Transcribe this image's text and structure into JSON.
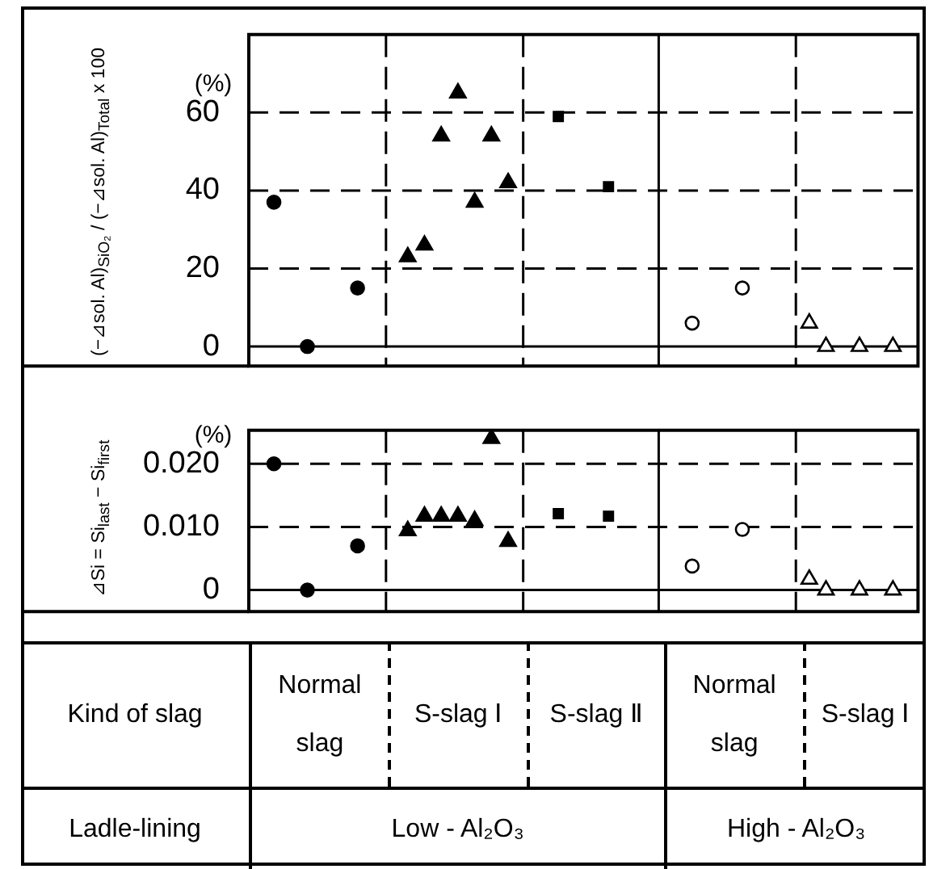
{
  "chart_data": [
    {
      "type": "scatter",
      "ylabel": "(−⊿sol. Al)$_{SiO₂}$ / (−⊿sol. Al)$_{Total}$ x 100",
      "annotations": [
        "(%)"
      ],
      "categories": [
        null,
        null,
        null,
        null,
        null,
        null,
        null,
        null,
        null,
        null,
        null,
        null,
        null,
        null,
        null,
        null,
        null,
        null,
        null,
        null,
        null,
        null,
        null,
        null,
        null,
        null,
        null,
        null,
        null,
        null,
        null,
        null,
        null,
        null,
        null,
        null,
        null,
        null,
        null,
        null
      ],
      "series": [
        {
          "marker": "circle",
          "color": "#000000",
          "values": [
            null,
            37,
            null,
            0,
            null,
            null,
            15,
            null,
            null,
            null,
            null,
            null,
            null,
            null,
            null,
            null,
            null,
            null,
            null,
            null,
            null,
            null,
            null,
            null,
            null,
            null,
            null,
            null,
            null,
            null,
            null,
            null,
            null,
            null,
            null,
            null,
            null,
            null,
            null,
            null
          ]
        },
        {
          "marker": "triangle",
          "color": "#000000",
          "values": [
            null,
            null,
            null,
            null,
            null,
            null,
            null,
            null,
            null,
            23,
            26,
            54,
            65,
            37,
            54,
            42,
            null,
            null,
            null,
            null,
            null,
            null,
            null,
            null,
            null,
            null,
            null,
            null,
            null,
            null,
            null,
            null,
            null,
            null,
            null,
            null,
            null,
            null,
            null,
            null
          ]
        },
        {
          "marker": "square",
          "color": "#000000",
          "values": [
            null,
            null,
            null,
            null,
            null,
            null,
            null,
            null,
            null,
            null,
            null,
            null,
            null,
            null,
            null,
            null,
            null,
            null,
            59,
            null,
            null,
            41,
            null,
            null,
            null,
            null,
            null,
            null,
            null,
            null,
            null,
            null,
            null,
            null,
            null,
            null,
            null,
            null,
            null,
            null
          ]
        },
        {
          "marker": "circle",
          "color": "#ffffff",
          "values": [
            null,
            null,
            null,
            null,
            null,
            null,
            null,
            null,
            null,
            null,
            null,
            null,
            null,
            null,
            null,
            null,
            null,
            null,
            null,
            null,
            null,
            null,
            null,
            null,
            null,
            null,
            6,
            null,
            null,
            15,
            null,
            null,
            null,
            null,
            null,
            null,
            null,
            null,
            null,
            null
          ]
        },
        {
          "marker": "triangle",
          "color": "#ffffff",
          "values": [
            null,
            null,
            null,
            null,
            null,
            null,
            null,
            null,
            null,
            null,
            null,
            null,
            null,
            null,
            null,
            null,
            null,
            null,
            null,
            null,
            null,
            null,
            null,
            null,
            null,
            null,
            null,
            null,
            null,
            null,
            null,
            null,
            null,
            6,
            0,
            null,
            0,
            null,
            0,
            null
          ]
        }
      ],
      "ylim": [
        -5,
        80
      ],
      "yticks": [
        0,
        20,
        40,
        60
      ],
      "grid": "y",
      "legend": false,
      "tick_labels": "y"
    },
    {
      "type": "scatter",
      "ylabel": "⊿Si = Si$_{last}$ − Si$_{first}$",
      "annotations": [
        "(%)"
      ],
      "categories": [
        null,
        null,
        null,
        null,
        null,
        null,
        null,
        null,
        null,
        null,
        null,
        null,
        null,
        null,
        null,
        null,
        null,
        null,
        null,
        null,
        null,
        null,
        null,
        null,
        null,
        null,
        null,
        null,
        null,
        null,
        null,
        null,
        null,
        null,
        null,
        null,
        null,
        null,
        null,
        null
      ],
      "series": [
        {
          "marker": "circle",
          "color": "#000000",
          "values": [
            null,
            0.02,
            null,
            0,
            null,
            null,
            0.007,
            null,
            null,
            null,
            null,
            null,
            null,
            null,
            null,
            null,
            null,
            null,
            null,
            null,
            null,
            null,
            null,
            null,
            null,
            null,
            null,
            null,
            null,
            null,
            null,
            null,
            null,
            null,
            null,
            null,
            null,
            null,
            null,
            null
          ]
        },
        {
          "marker": "triangle",
          "color": "#000000",
          "values": [
            null,
            null,
            null,
            null,
            null,
            null,
            null,
            null,
            null,
            0.0094,
            0.0117,
            0.0117,
            0.0117,
            0.011,
            0.024,
            0.0077,
            null,
            null,
            null,
            null,
            null,
            null,
            null,
            null,
            null,
            null,
            null,
            null,
            null,
            null,
            null,
            null,
            null,
            null,
            null,
            null,
            null,
            null,
            null,
            null
          ]
        },
        {
          "marker": "square",
          "color": "#000000",
          "values": [
            null,
            null,
            null,
            null,
            null,
            null,
            null,
            null,
            null,
            null,
            null,
            null,
            null,
            null,
            null,
            null,
            null,
            null,
            0.0121,
            null,
            null,
            0.0117,
            null,
            null,
            null,
            null,
            null,
            null,
            null,
            null,
            null,
            null,
            null,
            null,
            null,
            null,
            null,
            null,
            null,
            null
          ]
        },
        {
          "marker": "circle",
          "color": "#ffffff",
          "values": [
            null,
            null,
            null,
            null,
            null,
            null,
            null,
            null,
            null,
            null,
            null,
            null,
            null,
            null,
            null,
            null,
            null,
            null,
            null,
            null,
            null,
            null,
            null,
            null,
            null,
            null,
            0.0038,
            null,
            null,
            0.0096,
            null,
            null,
            null,
            null,
            null,
            null,
            null,
            null,
            null,
            null
          ]
        },
        {
          "marker": "triangle",
          "color": "#ffffff",
          "values": [
            null,
            null,
            null,
            null,
            null,
            null,
            null,
            null,
            null,
            null,
            null,
            null,
            null,
            null,
            null,
            null,
            null,
            null,
            null,
            null,
            null,
            null,
            null,
            null,
            null,
            null,
            null,
            null,
            null,
            null,
            null,
            null,
            null,
            0.0017,
            0,
            null,
            0,
            null,
            0,
            null
          ]
        }
      ],
      "ylim": [
        -0.0034,
        0.0253
      ],
      "yticks": [
        0,
        {
          "value": 0.01,
          "label": "0.010"
        },
        {
          "value": 0.02,
          "label": "0.020"
        }
      ],
      "grid": "y",
      "legend": false,
      "tick_labels": "y"
    },
    {
      "type": "other",
      "annotations": [
        "Kind of slag",
        "Normal slag",
        "S-slag Ⅰ",
        "S-slag Ⅱ",
        "Normal slag",
        "S-slag Ⅰ",
        "Ladle-lining",
        "Low - Al₂O₃",
        "High - Al₂O₃"
      ]
    }
  ]
}
